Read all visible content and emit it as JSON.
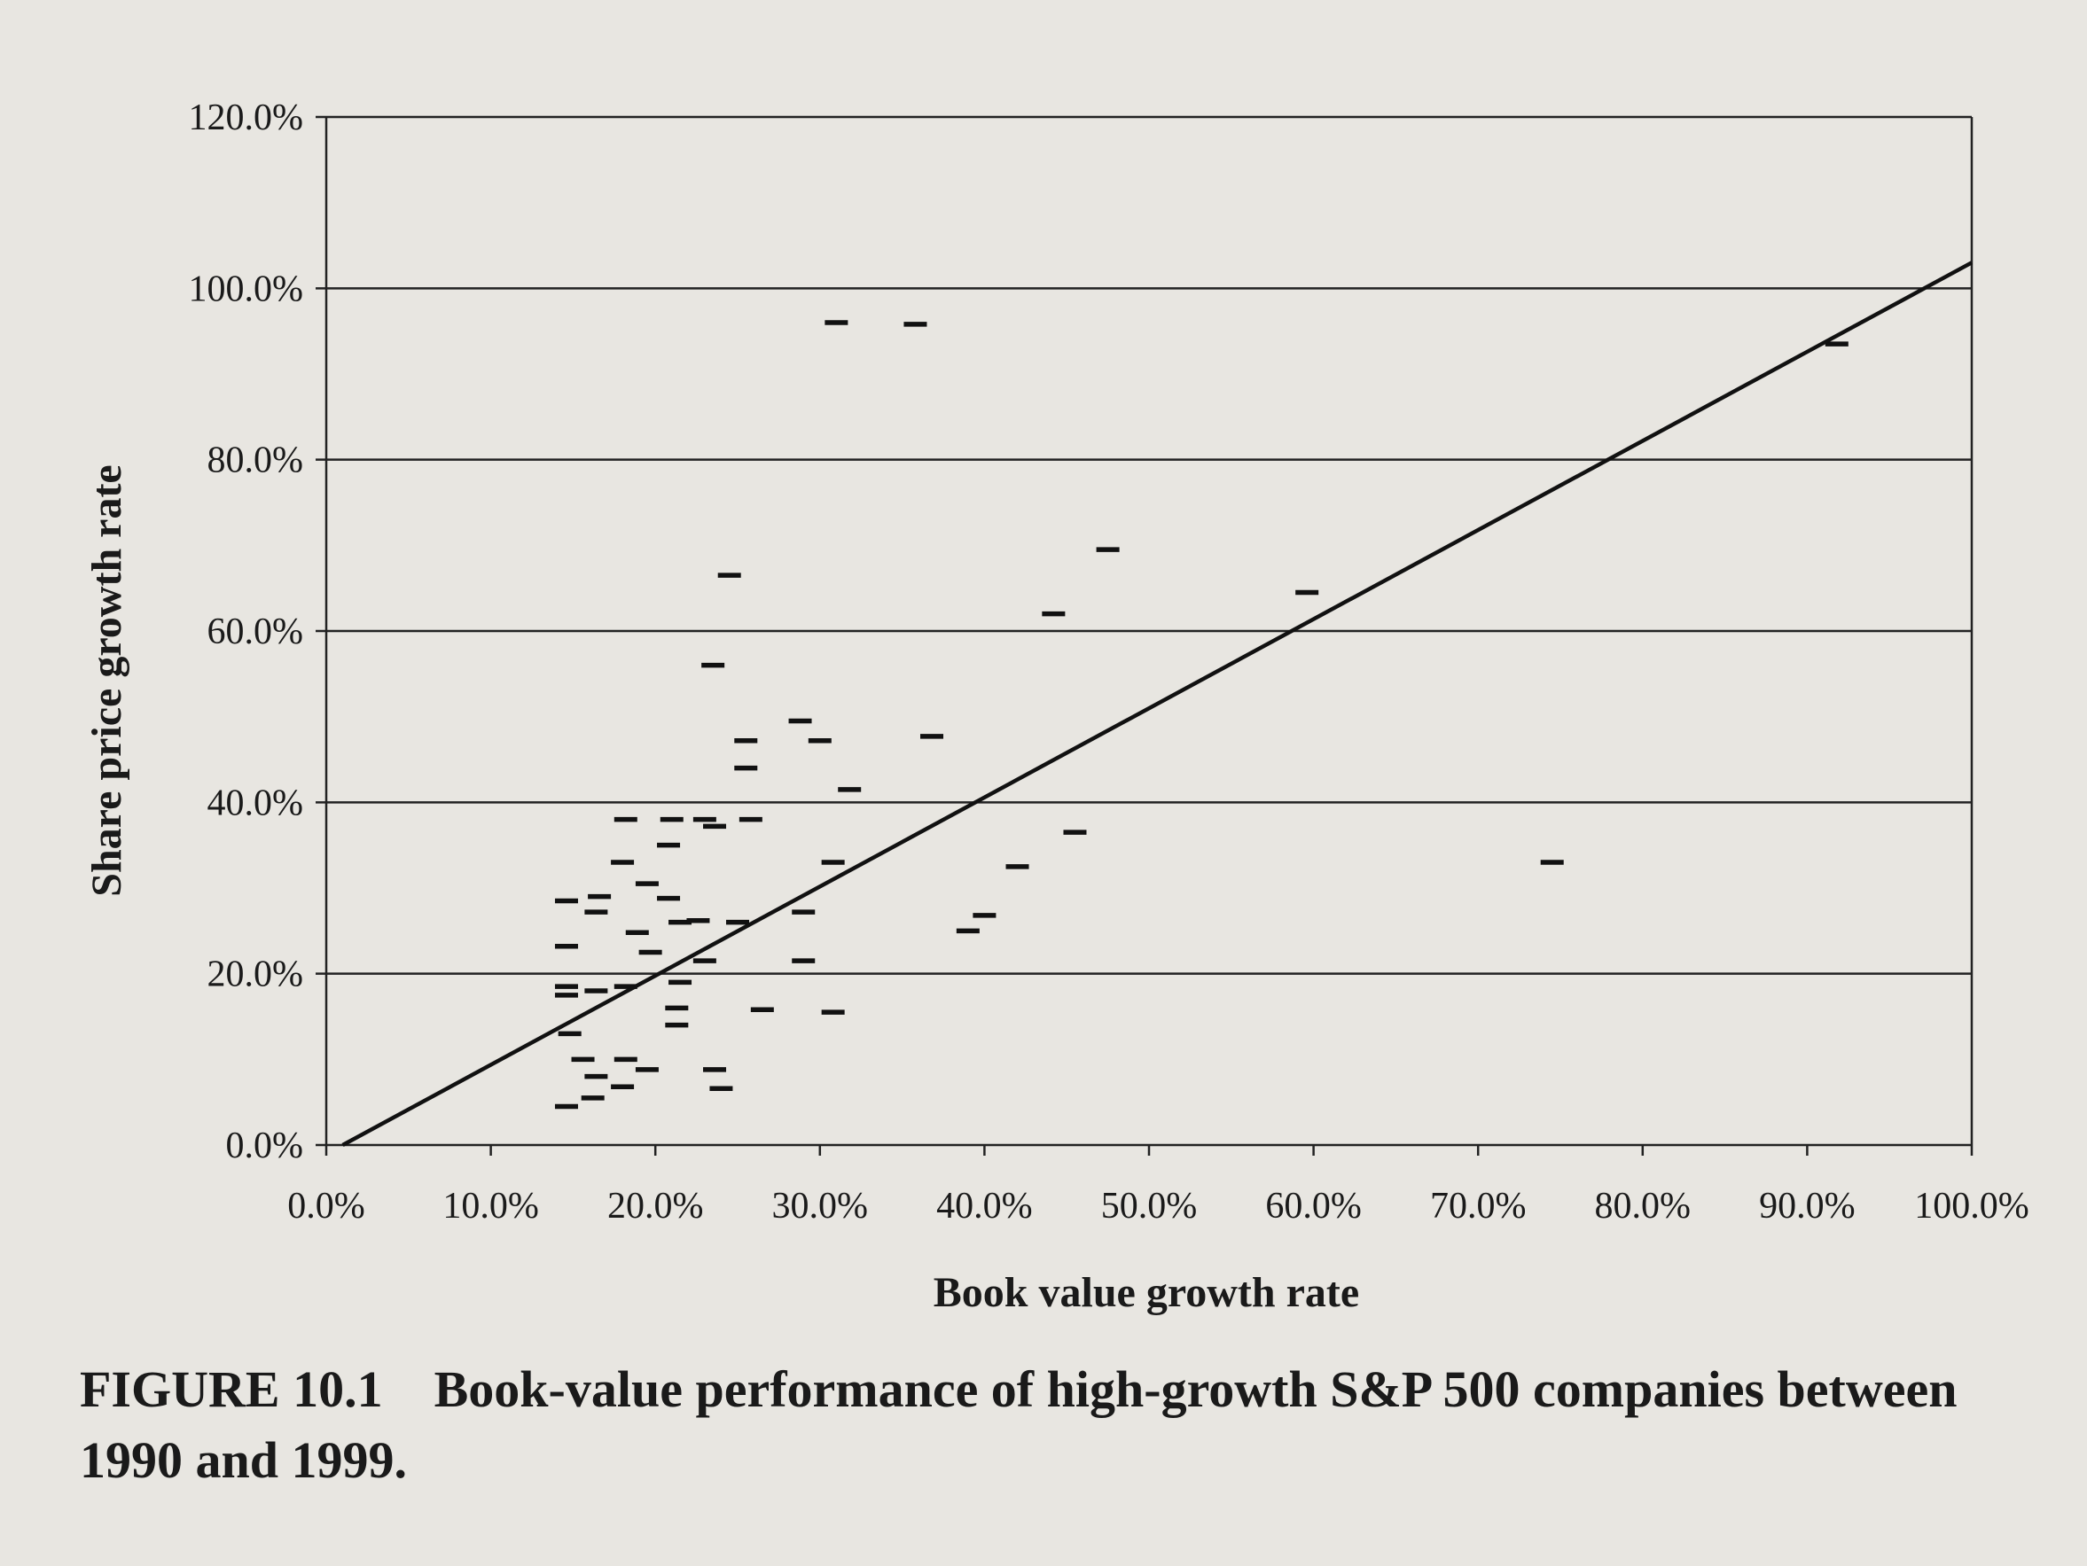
{
  "chart_data": {
    "type": "scatter",
    "xlabel": "Book value growth rate",
    "ylabel": "Share price growth rate",
    "xlim": [
      0,
      100
    ],
    "ylim": [
      0,
      120
    ],
    "xticks": [
      "0.0%",
      "10.0%",
      "20.0%",
      "30.0%",
      "40.0%",
      "50.0%",
      "60.0%",
      "70.0%",
      "80.0%",
      "90.0%",
      "100.0%"
    ],
    "yticks": [
      "0.0%",
      "20.0%",
      "40.0%",
      "60.0%",
      "80.0%",
      "100.0%",
      "120.0%"
    ],
    "grid": "horizontal",
    "marker": "dash",
    "points": [
      [
        31.0,
        96.0
      ],
      [
        35.8,
        95.8
      ],
      [
        91.8,
        93.5
      ],
      [
        47.5,
        69.5
      ],
      [
        24.5,
        66.5
      ],
      [
        59.6,
        64.5
      ],
      [
        44.2,
        62.0
      ],
      [
        23.5,
        56.0
      ],
      [
        28.8,
        49.5
      ],
      [
        25.5,
        47.2
      ],
      [
        30.0,
        47.2
      ],
      [
        36.8,
        47.7
      ],
      [
        25.5,
        44.0
      ],
      [
        31.8,
        41.5
      ],
      [
        45.5,
        36.5
      ],
      [
        18.2,
        38.0
      ],
      [
        21.0,
        38.0
      ],
      [
        23.0,
        38.0
      ],
      [
        23.6,
        37.2
      ],
      [
        25.8,
        38.0
      ],
      [
        20.8,
        35.0
      ],
      [
        18.0,
        33.0
      ],
      [
        30.8,
        33.0
      ],
      [
        42.0,
        32.5
      ],
      [
        74.5,
        33.0
      ],
      [
        19.5,
        30.5
      ],
      [
        14.6,
        28.5
      ],
      [
        16.6,
        29.0
      ],
      [
        20.8,
        28.8
      ],
      [
        16.4,
        27.2
      ],
      [
        29.0,
        27.2
      ],
      [
        40.0,
        26.8
      ],
      [
        21.5,
        26.0
      ],
      [
        22.6,
        26.2
      ],
      [
        25.0,
        26.0
      ],
      [
        18.9,
        24.8
      ],
      [
        39.0,
        25.0
      ],
      [
        14.6,
        23.2
      ],
      [
        19.7,
        22.5
      ],
      [
        23.0,
        21.5
      ],
      [
        29.0,
        21.5
      ],
      [
        21.5,
        19.0
      ],
      [
        18.2,
        18.5
      ],
      [
        14.6,
        18.5
      ],
      [
        14.6,
        17.5
      ],
      [
        16.4,
        18.0
      ],
      [
        21.3,
        16.0
      ],
      [
        26.5,
        15.8
      ],
      [
        30.8,
        15.5
      ],
      [
        21.3,
        14.0
      ],
      [
        14.8,
        13.0
      ],
      [
        15.6,
        10.0
      ],
      [
        18.2,
        10.0
      ],
      [
        16.4,
        8.0
      ],
      [
        19.5,
        8.8
      ],
      [
        23.6,
        8.8
      ],
      [
        18.0,
        6.8
      ],
      [
        24.0,
        6.6
      ],
      [
        16.2,
        5.5
      ],
      [
        14.6,
        4.5
      ]
    ],
    "regression_line": {
      "x": [
        1,
        100
      ],
      "y": [
        0,
        103
      ]
    }
  },
  "caption": {
    "label": "FIGURE 10.1",
    "text": "Book-value performance of high-growth S&P 500 companies between 1990 and 1999."
  }
}
